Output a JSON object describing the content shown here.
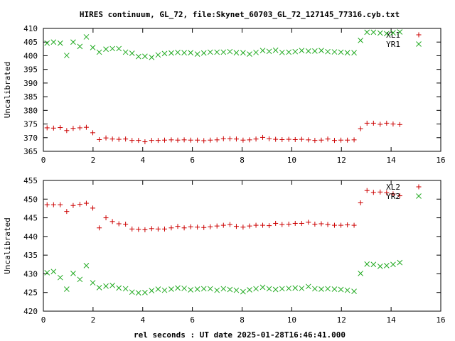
{
  "title": "HIRES continuum, GL_72, file:Skynet_60703_GL_72_127145_77316.cyb.txt",
  "xlabel": "rel seconds : UT date 2025-01-28T16:46:41.000",
  "colors": {
    "series1": "#cc0000",
    "series2": "#22aa22"
  },
  "chart_data": [
    {
      "type": "scatter",
      "ylabel": "Uncalibrated",
      "xlim": [
        0,
        16
      ],
      "ylim": [
        365,
        410
      ],
      "xticks": [
        "0",
        "2",
        "4",
        "6",
        "8",
        "10",
        "12",
        "14",
        "16"
      ],
      "yticks": [
        "365",
        "370",
        "375",
        "380",
        "385",
        "390",
        "395",
        "400",
        "405",
        "410"
      ],
      "legend_position": "top-right",
      "series": [
        {
          "name": "XL1",
          "marker": "plus",
          "x": [
            0.15,
            0.41,
            0.68,
            0.94,
            1.2,
            1.47,
            1.73,
            1.99,
            2.25,
            2.52,
            2.78,
            3.04,
            3.31,
            3.57,
            3.83,
            4.09,
            4.36,
            4.62,
            4.88,
            5.15,
            5.41,
            5.67,
            5.93,
            6.2,
            6.46,
            6.72,
            6.99,
            7.25,
            7.51,
            7.77,
            8.04,
            8.3,
            8.56,
            8.83,
            9.09,
            9.35,
            9.61,
            9.88,
            10.14,
            10.4,
            10.67,
            10.93,
            11.19,
            11.45,
            11.72,
            11.98,
            12.24,
            12.51,
            12.77,
            13.03,
            13.29,
            13.56,
            13.82,
            14.08,
            14.35
          ],
          "y": [
            373.6,
            373.5,
            373.7,
            372.6,
            373.4,
            373.6,
            373.8,
            371.8,
            369.3,
            369.9,
            369.5,
            369.4,
            369.5,
            369.0,
            369.0,
            368.5,
            369.0,
            369.0,
            369.1,
            369.2,
            369.1,
            369.2,
            369.1,
            369.1,
            368.9,
            369.1,
            369.2,
            369.6,
            369.6,
            369.5,
            369.1,
            369.2,
            369.5,
            370.1,
            369.6,
            369.4,
            369.3,
            369.4,
            369.3,
            369.4,
            369.2,
            369.0,
            369.1,
            369.5,
            369.0,
            369.1,
            369.1,
            369.2,
            373.3,
            375.3,
            375.3,
            374.9,
            375.3,
            375.0,
            374.8
          ]
        },
        {
          "name": "YR1",
          "marker": "cross",
          "x": [
            0.15,
            0.41,
            0.68,
            0.94,
            1.2,
            1.47,
            1.73,
            1.99,
            2.25,
            2.52,
            2.78,
            3.04,
            3.31,
            3.57,
            3.83,
            4.09,
            4.36,
            4.62,
            4.88,
            5.15,
            5.41,
            5.67,
            5.93,
            6.2,
            6.46,
            6.72,
            6.99,
            7.25,
            7.51,
            7.77,
            8.04,
            8.3,
            8.56,
            8.83,
            9.09,
            9.35,
            9.61,
            9.88,
            10.14,
            10.4,
            10.67,
            10.93,
            11.19,
            11.45,
            11.72,
            11.98,
            12.24,
            12.51,
            12.77,
            13.03,
            13.29,
            13.56,
            13.82,
            14.08,
            14.35
          ],
          "y": [
            404.6,
            405.0,
            404.6,
            400.1,
            405.0,
            403.4,
            406.9,
            403.0,
            401.3,
            402.4,
            402.6,
            402.6,
            401.3,
            400.9,
            399.7,
            399.8,
            399.4,
            400.3,
            400.8,
            401.0,
            401.2,
            401.1,
            401.1,
            400.6,
            401.0,
            401.3,
            401.3,
            401.3,
            401.5,
            401.1,
            401.1,
            400.6,
            401.2,
            401.9,
            401.6,
            402.0,
            401.2,
            401.3,
            401.5,
            401.9,
            401.7,
            401.7,
            401.9,
            401.5,
            401.4,
            401.3,
            401.1,
            401.1,
            405.6,
            408.6,
            408.6,
            408.3,
            408.1,
            408.4,
            408.7
          ]
        }
      ]
    },
    {
      "type": "scatter",
      "ylabel": "Uncalibrated",
      "xlim": [
        0,
        16
      ],
      "ylim": [
        420,
        455
      ],
      "xticks": [
        "0",
        "2",
        "4",
        "6",
        "8",
        "10",
        "12",
        "14",
        "16"
      ],
      "yticks": [
        "420",
        "425",
        "430",
        "435",
        "440",
        "445",
        "450",
        "455"
      ],
      "legend_position": "top-right",
      "series": [
        {
          "name": "XL2",
          "marker": "plus",
          "x": [
            0.15,
            0.41,
            0.68,
            0.94,
            1.2,
            1.47,
            1.73,
            1.99,
            2.25,
            2.52,
            2.78,
            3.04,
            3.31,
            3.57,
            3.83,
            4.09,
            4.36,
            4.62,
            4.88,
            5.15,
            5.41,
            5.67,
            5.93,
            6.2,
            6.46,
            6.72,
            6.99,
            7.25,
            7.51,
            7.77,
            8.04,
            8.3,
            8.56,
            8.83,
            9.09,
            9.35,
            9.61,
            9.88,
            10.14,
            10.4,
            10.67,
            10.93,
            11.19,
            11.45,
            11.72,
            11.98,
            12.24,
            12.51,
            12.77,
            13.03,
            13.29,
            13.56,
            13.82,
            14.08,
            14.35
          ],
          "y": [
            448.5,
            448.5,
            448.5,
            446.7,
            448.3,
            448.6,
            448.9,
            447.6,
            442.3,
            445.0,
            444.0,
            443.4,
            443.3,
            442.0,
            441.9,
            441.8,
            442.1,
            442.0,
            442.0,
            442.3,
            442.7,
            442.3,
            442.6,
            442.5,
            442.4,
            442.6,
            442.8,
            443.0,
            443.2,
            442.7,
            442.5,
            442.8,
            443.0,
            443.0,
            442.9,
            443.5,
            443.2,
            443.3,
            443.5,
            443.5,
            443.8,
            443.3,
            443.4,
            443.2,
            443.0,
            443.0,
            443.1,
            443.0,
            449.0,
            452.3,
            451.8,
            451.9,
            451.7,
            451.4,
            450.9
          ]
        },
        {
          "name": "YR2",
          "marker": "cross",
          "x": [
            0.15,
            0.41,
            0.68,
            0.94,
            1.2,
            1.47,
            1.73,
            1.99,
            2.25,
            2.52,
            2.78,
            3.04,
            3.31,
            3.57,
            3.83,
            4.09,
            4.36,
            4.62,
            4.88,
            5.15,
            5.41,
            5.67,
            5.93,
            6.2,
            6.46,
            6.72,
            6.99,
            7.25,
            7.51,
            7.77,
            8.04,
            8.3,
            8.56,
            8.83,
            9.09,
            9.35,
            9.61,
            9.88,
            10.14,
            10.4,
            10.67,
            10.93,
            11.19,
            11.45,
            11.72,
            11.98,
            12.24,
            12.51,
            12.77,
            13.03,
            13.29,
            13.56,
            13.82,
            14.08,
            14.35
          ],
          "y": [
            430.3,
            430.6,
            429.0,
            425.9,
            430.1,
            428.5,
            432.2,
            427.6,
            426.3,
            426.7,
            426.9,
            426.2,
            426.0,
            425.1,
            424.9,
            425.0,
            425.5,
            425.9,
            425.6,
            425.9,
            426.2,
            426.1,
            425.7,
            425.9,
            426.0,
            426.0,
            425.6,
            426.0,
            425.8,
            425.6,
            425.2,
            425.7,
            426.0,
            426.4,
            426.0,
            425.8,
            426.0,
            426.1,
            426.2,
            426.1,
            426.6,
            426.0,
            425.9,
            426.0,
            425.9,
            425.8,
            425.6,
            425.3,
            430.1,
            432.6,
            432.5,
            432.0,
            432.2,
            432.5,
            433.0
          ]
        }
      ]
    }
  ]
}
